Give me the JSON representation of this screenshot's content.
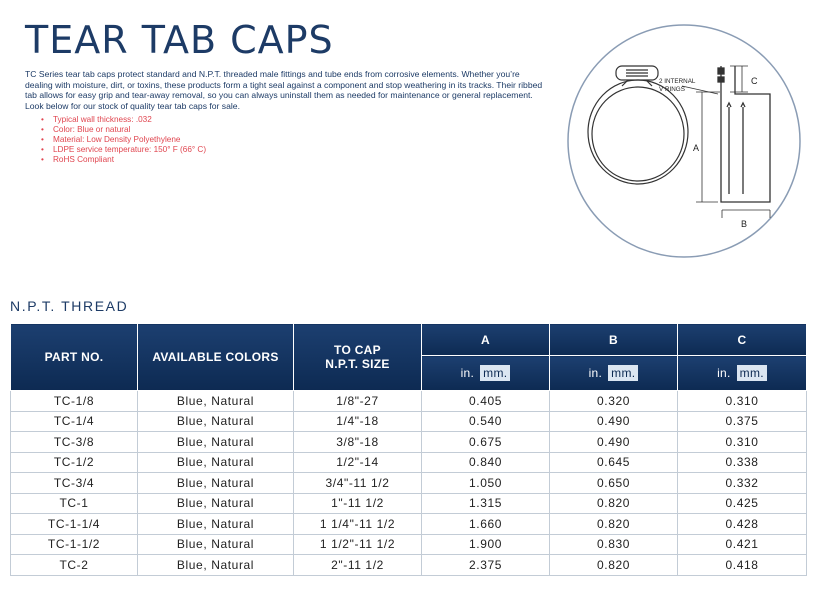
{
  "page": {
    "title": "TEAR TAB CAPS",
    "intro": "TC Series tear tab caps protect standard and N.P.T. threaded male fittings and tube ends from corrosive elements. Whether you’re dealing with moisture, dirt, or toxins, these products form a tight seal against a component and stop weathering in its tracks. Their ribbed tab allows for easy grip and tear-away removal, so you can always uninstall them as needed for maintenance or general replacement. Look below for our stock of quality tear tab caps for sale.",
    "specs": [
      "Typical wall thickness: .032",
      "Color: Blue or natural",
      "Material: Low Density Polyethylene",
      "LDPE service temperature: 150° F (66° C)",
      "RoHS Compliant"
    ]
  },
  "diagram": {
    "callout": [
      "2 INTERNAL",
      "V RINGS"
    ],
    "label_a": "A",
    "label_b": "B",
    "label_c": "C"
  },
  "table": {
    "section_title": "N.P.T. THREAD",
    "headers": {
      "part_no": "PART NO.",
      "colors": "AVAILABLE COLORS",
      "npt_line1": "TO CAP",
      "npt_line2": "N.P.T. SIZE",
      "a": "A",
      "b": "B",
      "c": "C",
      "unit_in": "in.",
      "unit_mm": "mm."
    },
    "rows": [
      {
        "part": "TC-1/8",
        "colors": "Blue, Natural",
        "npt": "1/8\"-27",
        "a": "0.405",
        "b": "0.320",
        "c": "0.310"
      },
      {
        "part": "TC-1/4",
        "colors": "Blue, Natural",
        "npt": "1/4\"-18",
        "a": "0.540",
        "b": "0.490",
        "c": "0.375"
      },
      {
        "part": "TC-3/8",
        "colors": "Blue, Natural",
        "npt": "3/8\"-18",
        "a": "0.675",
        "b": "0.490",
        "c": "0.310"
      },
      {
        "part": "TC-1/2",
        "colors": "Blue, Natural",
        "npt": "1/2\"-14",
        "a": "0.840",
        "b": "0.645",
        "c": "0.338"
      },
      {
        "part": "TC-3/4",
        "colors": "Blue, Natural",
        "npt": "3/4\"-11 1/2",
        "a": "1.050",
        "b": "0.650",
        "c": "0.332"
      },
      {
        "part": "TC-1",
        "colors": "Blue, Natural",
        "npt": "1\"-11 1/2",
        "a": "1.315",
        "b": "0.820",
        "c": "0.425"
      },
      {
        "part": "TC-1-1/4",
        "colors": "Blue, Natural",
        "npt": "1 1/4\"-11 1/2",
        "a": "1.660",
        "b": "0.820",
        "c": "0.428"
      },
      {
        "part": "TC-1-1/2",
        "colors": "Blue, Natural",
        "npt": "1 1/2\"-11 1/2",
        "a": "1.900",
        "b": "0.830",
        "c": "0.421"
      },
      {
        "part": "TC-2",
        "colors": "Blue, Natural",
        "npt": "2\"-11 1/2",
        "a": "2.375",
        "b": "0.820",
        "c": "0.418"
      }
    ]
  },
  "colors": {
    "brand_navy": "#1d3b66",
    "header_bg": "#0d2a52",
    "spec_red": "#e0454f"
  }
}
